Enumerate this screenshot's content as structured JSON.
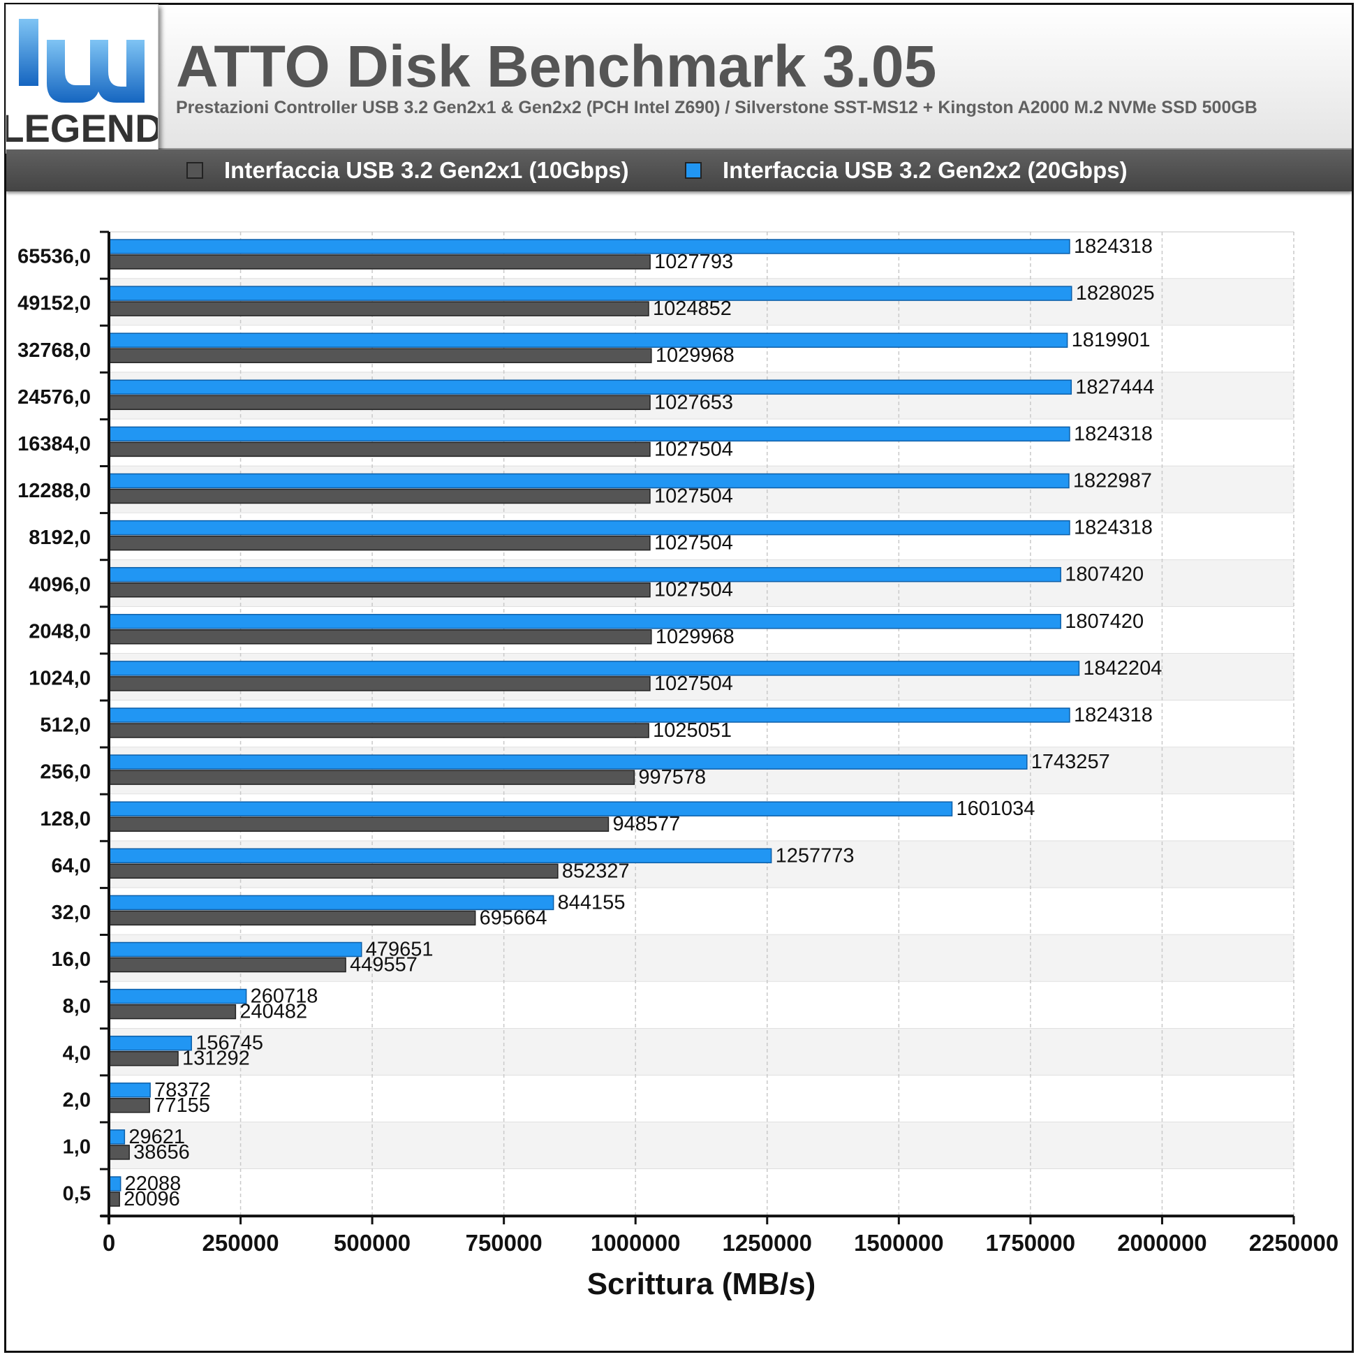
{
  "header": {
    "title": "ATTO Disk Benchmark 3.05",
    "subtitle": "Prestazioni Controller USB 3.2 Gen2x1 & Gen2x2 (PCH Intel Z690) / Silverstone SST-MS12 + Kingston A2000 M.2 NVMe SSD 500GB",
    "logo_text": "LEGEND"
  },
  "legend": {
    "items": [
      {
        "label": "Interfaccia USB 3.2 Gen2x1 (10Gbps)",
        "color": "#555555"
      },
      {
        "label": "Interfaccia USB 3.2 Gen2x2 (20Gbps)",
        "color": "#2196f3"
      }
    ]
  },
  "chart_data": {
    "type": "bar",
    "orientation": "horizontal",
    "title": "ATTO Disk Benchmark 3.05",
    "xlabel": "Scrittura (MB/s)",
    "ylabel": "",
    "xlim": [
      0,
      2250000
    ],
    "x_ticks": [
      "0",
      "250000",
      "500000",
      "750000",
      "1000000",
      "1250000",
      "1500000",
      "1750000",
      "2000000",
      "2250000"
    ],
    "grid": true,
    "categories": [
      "65536,0",
      "49152,0",
      "32768,0",
      "24576,0",
      "16384,0",
      "12288,0",
      "8192,0",
      "4096,0",
      "2048,0",
      "1024,0",
      "512,0",
      "256,0",
      "128,0",
      "64,0",
      "32,0",
      "16,0",
      "8,0",
      "4,0",
      "2,0",
      "1,0",
      "0,5"
    ],
    "series": [
      {
        "name": "Interfaccia USB 3.2 Gen2x2 (20Gbps)",
        "color": "#2196f3",
        "values": [
          1824318,
          1828025,
          1819901,
          1827444,
          1824318,
          1822987,
          1824318,
          1807420,
          1807420,
          1842204,
          1824318,
          1743257,
          1601034,
          1257773,
          844155,
          479651,
          260718,
          156745,
          78372,
          29621,
          22088
        ]
      },
      {
        "name": "Interfaccia USB 3.2 Gen2x1 (10Gbps)",
        "color": "#555555",
        "values": [
          1027793,
          1024852,
          1029968,
          1027653,
          1027504,
          1027504,
          1027504,
          1027504,
          1029968,
          1027504,
          1025051,
          997578,
          948577,
          852327,
          695664,
          449557,
          240482,
          131292,
          77155,
          38656,
          20096
        ]
      }
    ]
  }
}
